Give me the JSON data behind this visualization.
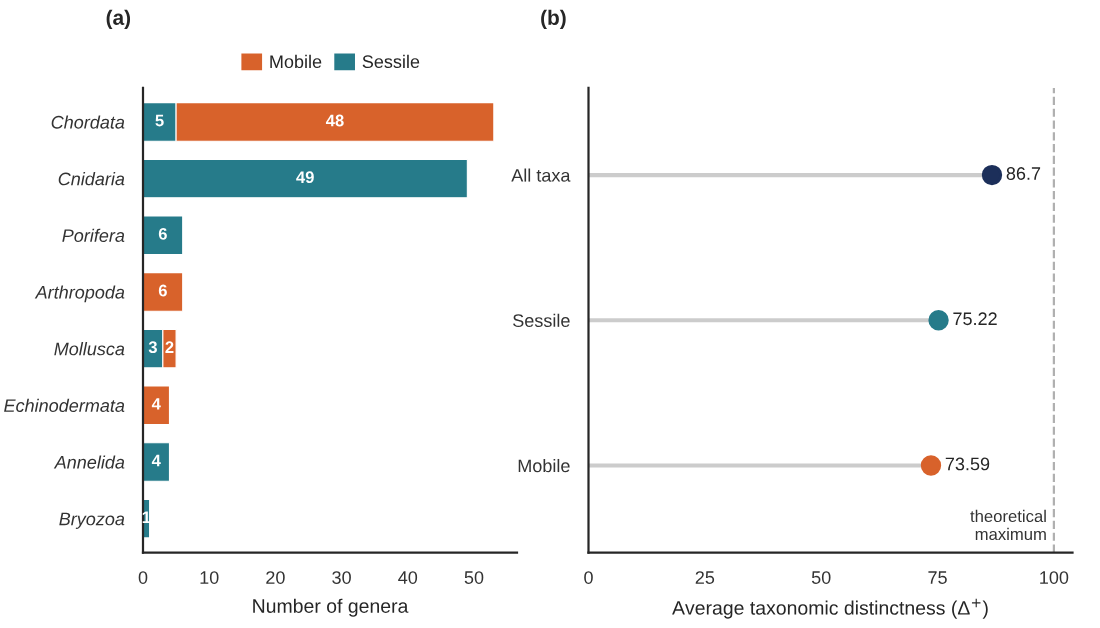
{
  "chart_data": [
    {
      "type": "bar",
      "title": "(a)",
      "orientation": "horizontal",
      "stacked": true,
      "xlabel": "Number of genera",
      "categories": [
        "Chordata",
        "Cnidaria",
        "Porifera",
        "Arthropoda",
        "Mollusca",
        "Echinodermata",
        "Annelida",
        "Bryozoa"
      ],
      "series": [
        {
          "name": "Sessile",
          "color": "#267b8a",
          "values": [
            5,
            49,
            6,
            null,
            3,
            null,
            4,
            1
          ]
        },
        {
          "name": "Mobile",
          "color": "#d8622b",
          "values": [
            48,
            null,
            null,
            6,
            2,
            4,
            null,
            null
          ]
        }
      ],
      "xlim": [
        0,
        56.5
      ],
      "xticks": [
        0,
        10,
        20,
        30,
        40,
        50
      ],
      "data_labels": true,
      "legend": "top",
      "grid": false
    },
    {
      "type": "lollipop",
      "title": "(b)",
      "orientation": "horizontal",
      "xlabel": "Average taxonomic distinctness (Δ$^{+}$)",
      "categories": [
        "All taxa",
        "Sessile",
        "Mobile"
      ],
      "values": [
        86.7,
        75.22,
        73.59
      ],
      "colors": [
        "#1c2f5a",
        "#267b8a",
        "#d8622b"
      ],
      "xlim": [
        0,
        104
      ],
      "xticks": [
        0,
        25,
        50,
        75,
        100
      ],
      "data_labels": true,
      "grid": false,
      "ref_lines": [
        {
          "axis": "x",
          "value": 100,
          "label": "theoretical\nmaximum",
          "color": "#b0b0b0",
          "line_style": "dashed"
        }
      ]
    }
  ]
}
